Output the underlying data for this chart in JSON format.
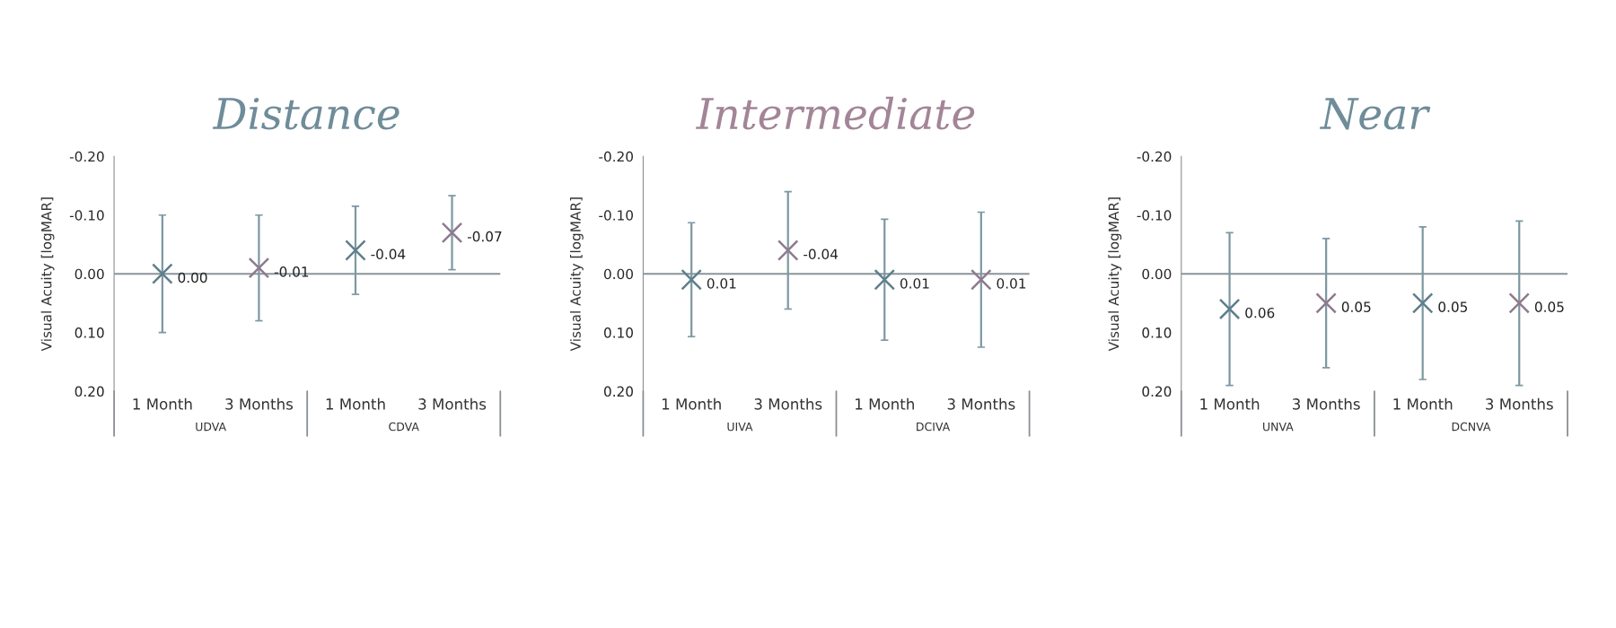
{
  "chart_data": [
    {
      "type": "scatter",
      "title": "Distance",
      "ylabel": "Visual Acuity [logMAR]",
      "categories": [
        "1 Month",
        "3 Months",
        "1 Month",
        "3 Months"
      ],
      "annotations": [
        "UDVA",
        "CDVA"
      ],
      "values": [
        0.0,
        -0.01,
        -0.04,
        -0.07
      ],
      "colors": [
        "#5e7f8c",
        "#8e7a8e",
        "#5e7f8c",
        "#8e7a8e"
      ],
      "errors": [
        0.1,
        0.09,
        0.075,
        0.063
      ],
      "value_labels": [
        "0.00",
        "-0.01",
        "-0.04",
        "-0.07"
      ],
      "marker": "cross",
      "ylim": [
        0.2,
        -0.2
      ],
      "yticks": [
        {
          "value": -0.2,
          "label": "-0.20"
        },
        {
          "value": -0.1,
          "label": "-0.10"
        },
        {
          "value": 0,
          "label": "0.00"
        },
        {
          "value": 0.1,
          "label": "0.10"
        },
        {
          "value": 0.2,
          "label": "0.20"
        }
      ],
      "ref_lines": [
        {
          "axis": "y",
          "value": 0,
          "color": "#8a949a"
        }
      ],
      "grid": false
    },
    {
      "type": "scatter",
      "title": "Intermediate",
      "ylabel": "Visual Acuity [logMAR]",
      "categories": [
        "1 Month",
        "3 Months",
        "1 Month",
        "3 Months"
      ],
      "annotations": [
        "UIVA",
        "DCIVA"
      ],
      "values": [
        0.01,
        -0.04,
        0.01,
        0.01
      ],
      "colors": [
        "#5e7f8c",
        "#8e7a8e",
        "#5e7f8c",
        "#8e7a8e"
      ],
      "errors": [
        0.097,
        0.1,
        0.103,
        0.115
      ],
      "value_labels": [
        "0.01",
        "-0.04",
        "0.01",
        "0.01"
      ],
      "marker": "cross",
      "ylim": [
        0.2,
        -0.2
      ],
      "yticks": [
        {
          "value": -0.2,
          "label": "-0.20"
        },
        {
          "value": -0.1,
          "label": "-0.10"
        },
        {
          "value": 0,
          "label": "0.00"
        },
        {
          "value": 0.1,
          "label": "0.10"
        },
        {
          "value": 0.2,
          "label": "0.20"
        }
      ],
      "ref_lines": [
        {
          "axis": "y",
          "value": 0,
          "color": "#8a949a"
        }
      ],
      "grid": false
    },
    {
      "type": "scatter",
      "title": "Near",
      "ylabel": "Visual Acuity [logMAR]",
      "categories": [
        "1 Month",
        "3 Months",
        "1 Month",
        "3 Months"
      ],
      "annotations": [
        "UNVA",
        "DCNVA"
      ],
      "values": [
        0.06,
        0.05,
        0.05,
        0.05
      ],
      "colors": [
        "#5e7f8c",
        "#8e7a8e",
        "#5e7f8c",
        "#8e7a8e"
      ],
      "errors": [
        0.13,
        0.11,
        0.13,
        0.14
      ],
      "value_labels": [
        "0.06",
        "0.05",
        "0.05",
        "0.05"
      ],
      "marker": "cross",
      "ylim": [
        0.2,
        -0.2
      ],
      "yticks": [
        {
          "value": -0.2,
          "label": "-0.20"
        },
        {
          "value": -0.1,
          "label": "-0.10"
        },
        {
          "value": 0,
          "label": "0.00"
        },
        {
          "value": 0.1,
          "label": "0.10"
        },
        {
          "value": 0.2,
          "label": "0.20"
        }
      ],
      "ref_lines": [
        {
          "axis": "y",
          "value": 0,
          "color": "#8a949a"
        }
      ],
      "grid": false
    }
  ]
}
